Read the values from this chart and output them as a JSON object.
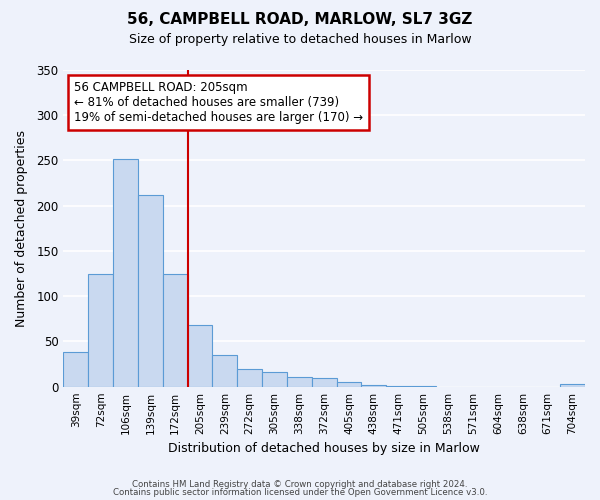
{
  "title": "56, CAMPBELL ROAD, MARLOW, SL7 3GZ",
  "subtitle": "Size of property relative to detached houses in Marlow",
  "xlabel": "Distribution of detached houses by size in Marlow",
  "ylabel": "Number of detached properties",
  "bin_labels": [
    "39sqm",
    "72sqm",
    "106sqm",
    "139sqm",
    "172sqm",
    "205sqm",
    "239sqm",
    "272sqm",
    "305sqm",
    "338sqm",
    "372sqm",
    "405sqm",
    "438sqm",
    "471sqm",
    "505sqm",
    "538sqm",
    "571sqm",
    "604sqm",
    "638sqm",
    "671sqm",
    "704sqm"
  ],
  "bar_values": [
    38,
    124,
    252,
    212,
    125,
    68,
    35,
    20,
    16,
    11,
    10,
    5,
    2,
    1,
    1,
    0,
    0,
    0,
    0,
    0,
    3
  ],
  "bar_color": "#c9d9f0",
  "bar_edge_color": "#5b9bd5",
  "vline_index": 5,
  "vline_color": "#cc0000",
  "annotation_title": "56 CAMPBELL ROAD: 205sqm",
  "annotation_line1": "← 81% of detached houses are smaller (739)",
  "annotation_line2": "19% of semi-detached houses are larger (170) →",
  "annotation_box_color": "#cc0000",
  "ylim": [
    0,
    350
  ],
  "yticks": [
    0,
    50,
    100,
    150,
    200,
    250,
    300,
    350
  ],
  "footer1": "Contains HM Land Registry data © Crown copyright and database right 2024.",
  "footer2": "Contains public sector information licensed under the Open Government Licence v3.0.",
  "background_color": "#eef2fb"
}
